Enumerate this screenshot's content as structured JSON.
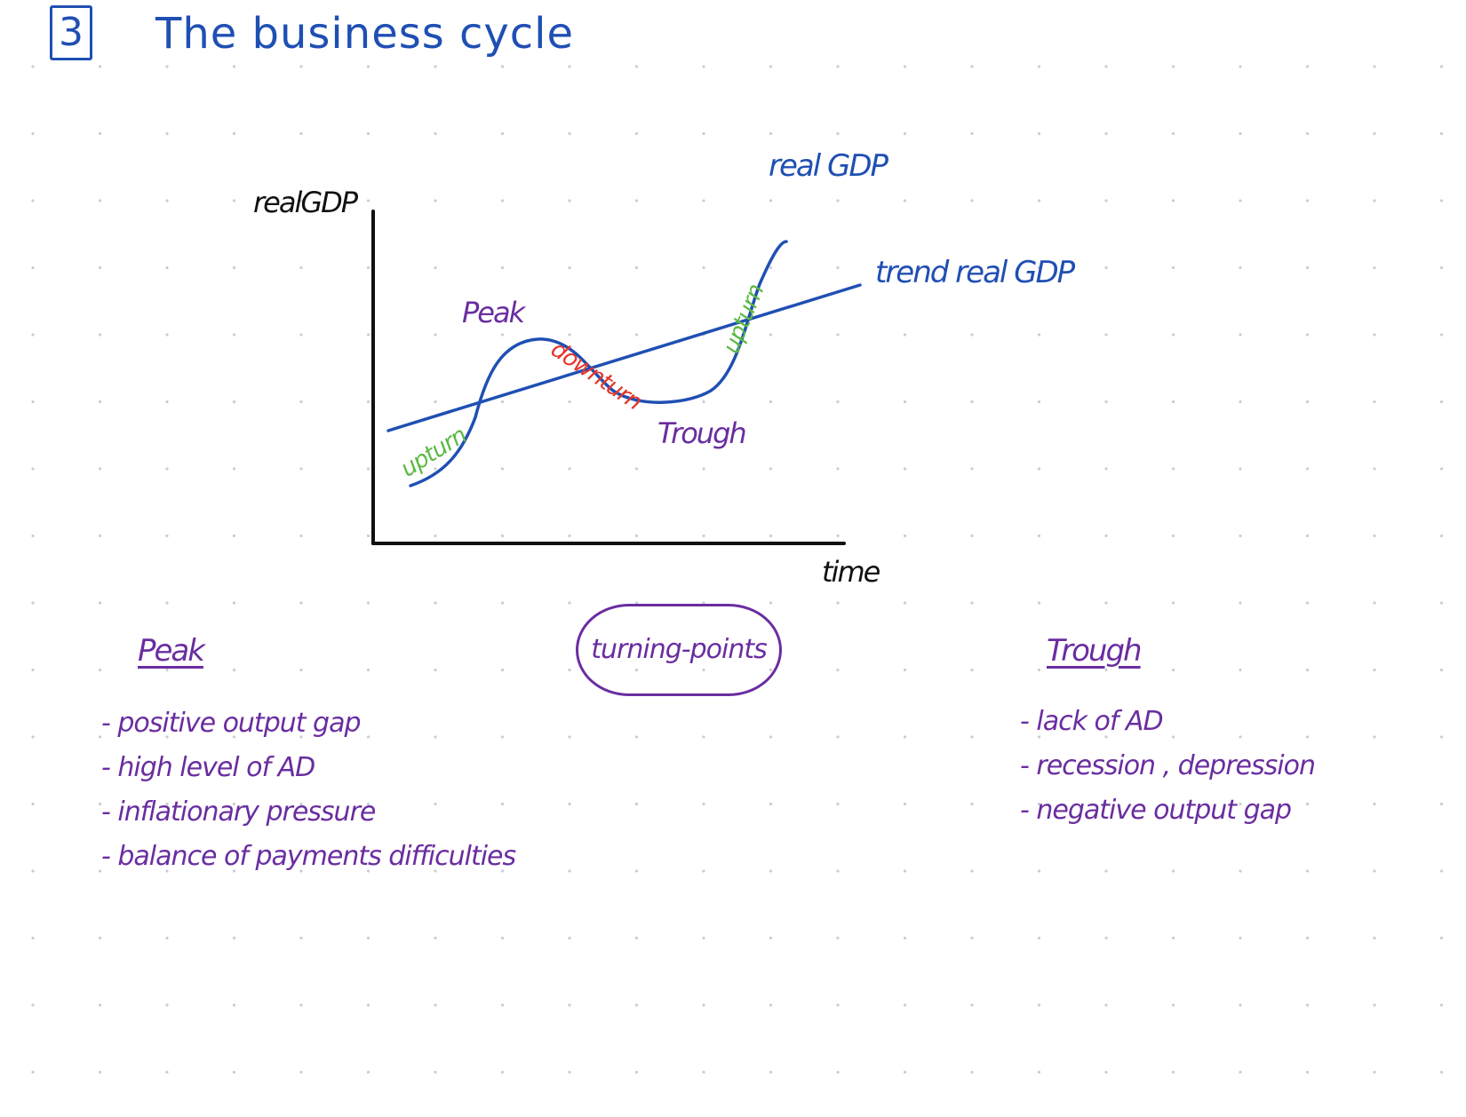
{
  "page": {
    "section_number": "3",
    "title": "The business cycle"
  },
  "diagram": {
    "y_axis_label": "realGDP",
    "x_axis_label": "time",
    "actual_curve_label": "real GDP",
    "trend_line_label": "trend real GDP",
    "labels": {
      "peak": "Peak",
      "trough": "Trough",
      "downturn": "downturn",
      "upturn_left": "upturn",
      "upturn_right": "upturn"
    },
    "colors": {
      "curve": "#1f4fb3",
      "axes": "#111111",
      "upturn": "#5cb944",
      "downturn": "#e5352a",
      "turning_point": "#6a2da0"
    }
  },
  "turning_points": {
    "label": "turning-points"
  },
  "peak_notes": {
    "heading": "Peak",
    "items": [
      "- positive output gap",
      "- high level of AD",
      "- inflationary pressure",
      "- balance of payments difficulties"
    ]
  },
  "trough_notes": {
    "heading": "Trough",
    "items": [
      "- lack of AD",
      "- recession , depression",
      "- negative output gap"
    ]
  }
}
